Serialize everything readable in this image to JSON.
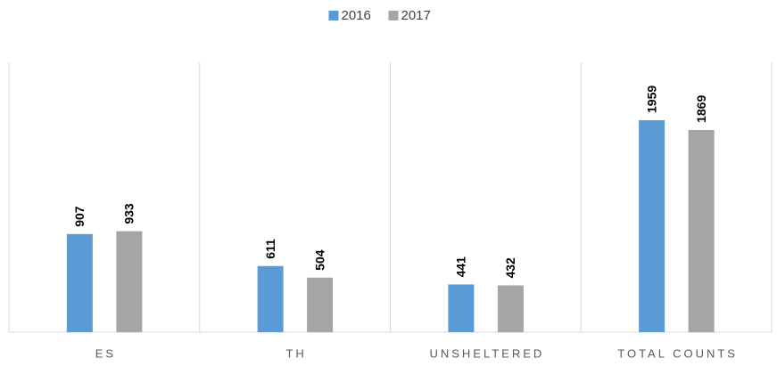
{
  "chart_data": {
    "type": "bar",
    "categories": [
      "ES",
      "TH",
      "UNSHELTERED",
      "TOTAL COUNTS"
    ],
    "series": [
      {
        "name": "2016",
        "color": "#5b9bd5",
        "values": [
          907,
          611,
          441,
          1959
        ]
      },
      {
        "name": "2017",
        "color": "#a5a5a5",
        "values": [
          933,
          504,
          432,
          1869
        ]
      }
    ],
    "legend": "top"
  }
}
